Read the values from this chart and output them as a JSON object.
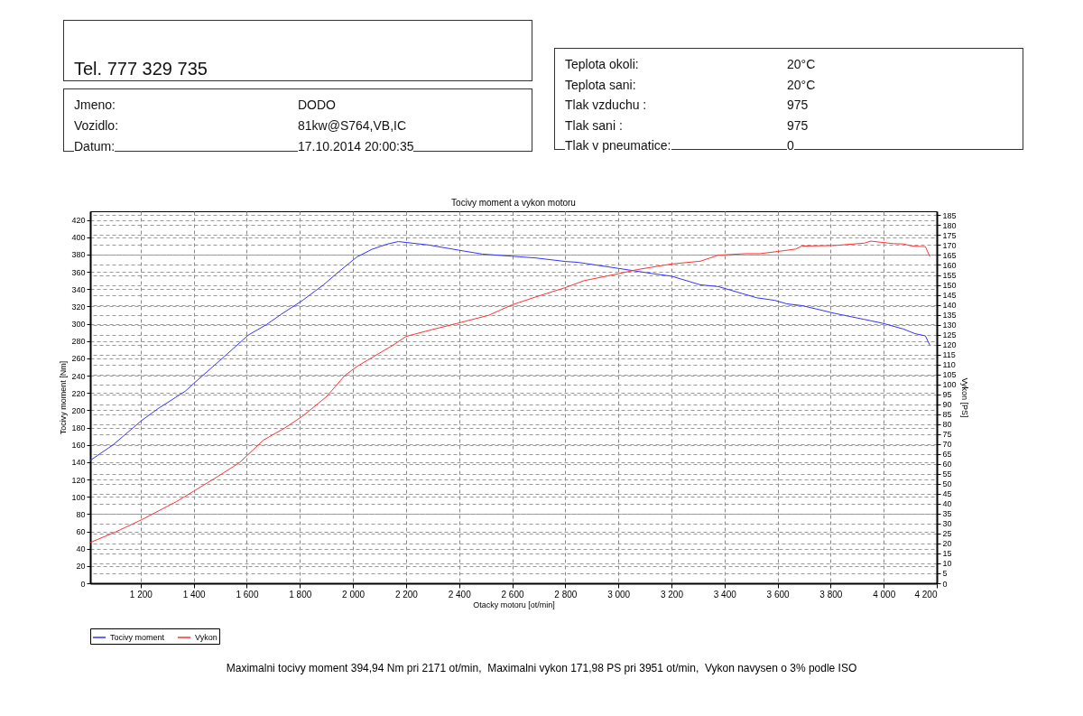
{
  "chart_data": {
    "type": "line",
    "title": "Tocivy moment a vykon motoru",
    "xlabel": "Otacky motoru [ot/min]",
    "ylabel": "Tocivy moment [Nm]",
    "y2label": "Vykon [PS]",
    "xlim": [
      1010,
      4200
    ],
    "xticks": [
      {
        "value": 1200,
        "label": "1 200"
      },
      {
        "value": 1400,
        "label": "1 400"
      },
      {
        "value": 1600,
        "label": "1 600"
      },
      {
        "value": 1800,
        "label": "1 800"
      },
      {
        "value": 2000,
        "label": "2 000"
      },
      {
        "value": 2200,
        "label": "2 200"
      },
      {
        "value": 2400,
        "label": "2 400"
      },
      {
        "value": 2600,
        "label": "2 600"
      },
      {
        "value": 2800,
        "label": "2 800"
      },
      {
        "value": 3000,
        "label": "3 000"
      },
      {
        "value": 3200,
        "label": "3 200"
      },
      {
        "value": 3400,
        "label": "3 400"
      },
      {
        "value": 3600,
        "label": "3 600"
      },
      {
        "value": 3800,
        "label": "3 800"
      },
      {
        "value": 4000,
        "label": "4 000"
      },
      {
        "value": 4200,
        "label": "4 200"
      }
    ],
    "ylim": [
      0,
      430
    ],
    "yticks": [
      0,
      20,
      40,
      60,
      80,
      100,
      120,
      140,
      160,
      180,
      200,
      220,
      240,
      260,
      280,
      300,
      320,
      340,
      360,
      380,
      400,
      420
    ],
    "y2lim": [
      0,
      187
    ],
    "y2ticks": [
      0,
      5,
      10,
      15,
      20,
      25,
      30,
      35,
      40,
      45,
      50,
      55,
      60,
      65,
      70,
      75,
      80,
      85,
      90,
      95,
      100,
      105,
      110,
      115,
      120,
      125,
      130,
      135,
      140,
      145,
      150,
      155,
      160,
      165,
      170,
      175,
      180,
      185
    ],
    "grid": true,
    "legend": "bottom",
    "series": [
      {
        "name": "Tocivy moment",
        "color": "#3333ff",
        "x": [
          1010,
          1096,
          1203,
          1266,
          1368,
          1400,
          1515,
          1606,
          1674,
          1730,
          1810,
          1889,
          1946,
          2014,
          2071,
          2128,
          2171,
          2286,
          2399,
          2488,
          2600,
          2690,
          2800,
          2847,
          3000,
          3128,
          3200,
          3309,
          3376,
          3466,
          3522,
          3590,
          3635,
          3691,
          3747,
          3815,
          3927,
          3994,
          4073,
          4118,
          4157,
          4174
        ],
        "values": [
          142,
          160,
          188,
          202,
          222,
          231,
          262,
          287,
          299,
          311,
          327,
          345,
          360,
          377,
          386,
          392,
          395,
          391,
          385,
          380.5,
          378,
          376,
          372,
          371,
          364,
          358,
          355,
          345,
          343,
          335,
          330,
          327,
          323,
          321,
          317,
          312,
          305,
          300.7,
          294,
          288.5,
          286,
          275
        ]
      },
      {
        "name": "Vykon",
        "color": "#ff3333",
        "axis": "y2",
        "x": [
          1010,
          1107,
          1203,
          1334,
          1400,
          1492,
          1572,
          1663,
          1742,
          1810,
          1901,
          1969,
          2014,
          2082,
          2150,
          2200,
          2286,
          2400,
          2511,
          2600,
          2690,
          2800,
          2870,
          3000,
          3072,
          3200,
          3309,
          3376,
          3478,
          3534,
          3601,
          3668,
          3691,
          3815,
          3927,
          3951,
          4039,
          4073,
          4107,
          4157,
          4174
        ],
        "values": [
          20.5,
          25.9,
          31.9,
          41,
          46.3,
          53.8,
          60.6,
          72,
          78,
          84,
          93.9,
          104.4,
          108.9,
          114.3,
          119.6,
          124.1,
          127.1,
          130.9,
          134.7,
          140,
          144,
          148.6,
          152.1,
          155.6,
          157.7,
          160.5,
          161.9,
          164.9,
          165.7,
          165.7,
          166.8,
          168,
          169.5,
          169.8,
          171,
          172,
          170.7,
          170.6,
          169.5,
          169.2,
          164.2
        ]
      }
    ],
    "annotations": [
      "Tel. 777 329 735",
      "Jmeno:",
      "DODO",
      "Vozidlo:",
      "81kw@S764,VB,IC",
      "Datum:",
      "17.10.2014 20:00:35",
      "Teplota okoli:",
      "20°C",
      "Teplota sani:",
      "20°C",
      "Tlak vzduchu :",
      "975",
      "Tlak sani :",
      "975",
      "Tlak v pneumatice:",
      "0",
      "Maximalni tocivy moment 394,94 Nm pri 2171 ot/min,  Maximalni vykon 171,98 PS pri 3951 ot/min,  Vykon navysen o 3% podle ISO"
    ]
  }
}
